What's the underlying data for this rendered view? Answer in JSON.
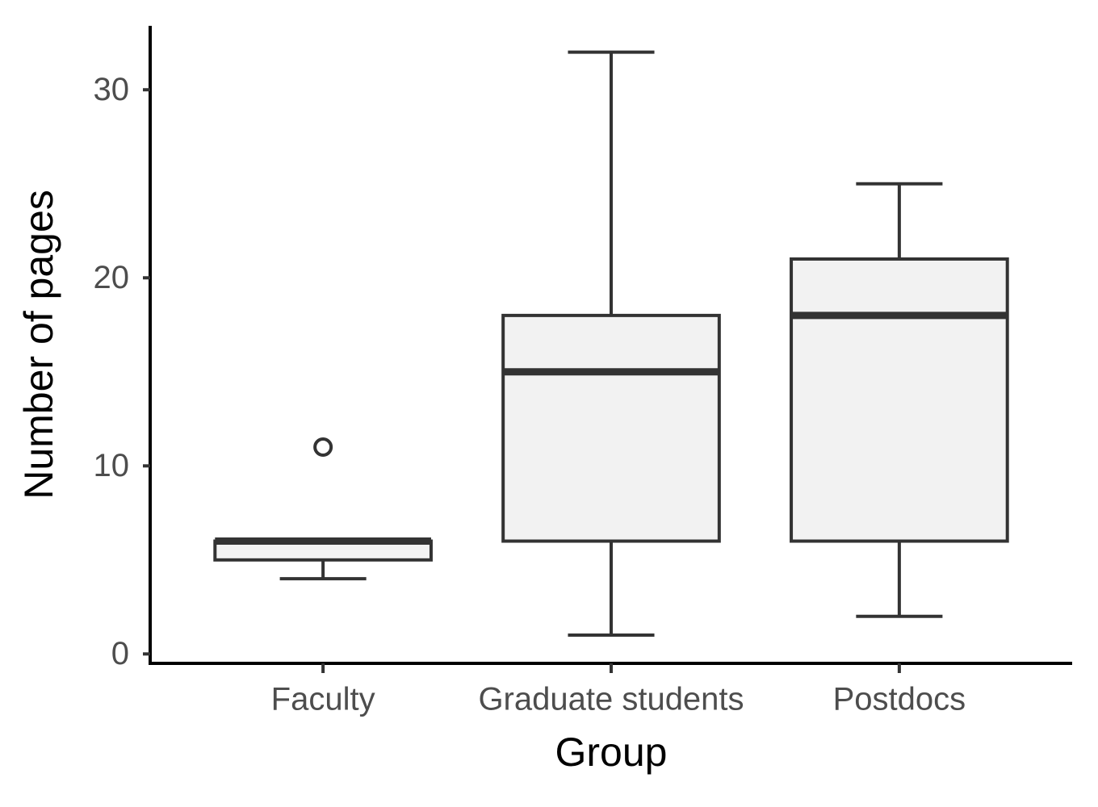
{
  "chart_data": {
    "type": "box",
    "x_label": "Group",
    "y_label": "Number of pages",
    "categories": [
      "Faculty",
      "Graduate students",
      "Postdocs"
    ],
    "min": [
      4,
      1,
      2
    ],
    "q1": [
      5,
      6,
      6
    ],
    "median": [
      6,
      15,
      18
    ],
    "q3": [
      6,
      18,
      21
    ],
    "max": [
      6,
      32,
      25
    ],
    "outliers": [
      [
        11
      ],
      [],
      []
    ],
    "color": "#f2f2f2",
    "line_color": "#333333",
    "ylim": [
      -0.5,
      33.4
    ],
    "yticks": [
      0,
      10,
      20,
      30
    ],
    "grid": false
  }
}
